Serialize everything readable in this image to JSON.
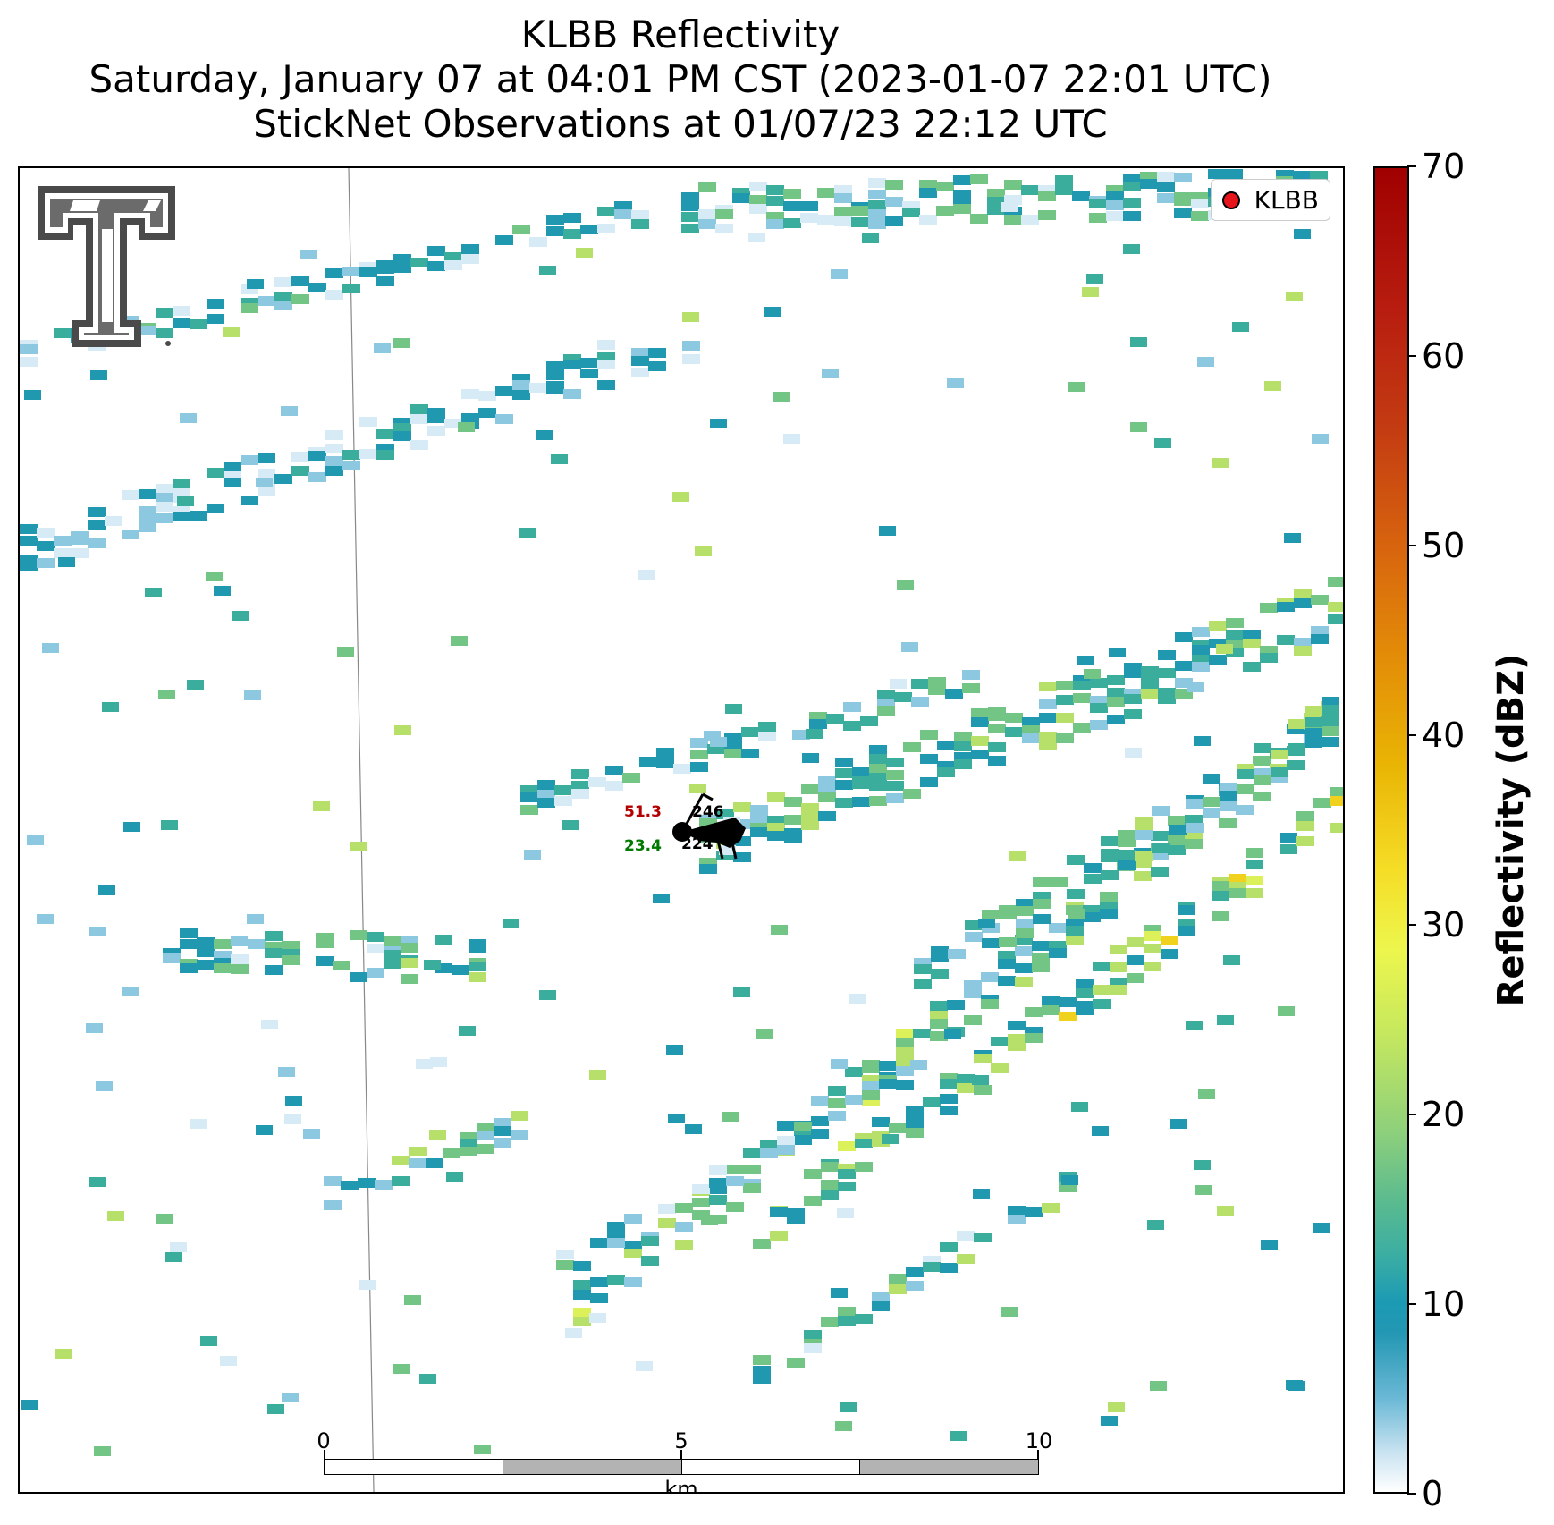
{
  "title": {
    "line1": "KLBB Reflectivity",
    "line2": "Saturday, January 07 at 04:01 PM CST (2023-01-07 22:01 UTC)",
    "line3": "StickNet Observations at 01/07/23 22:12 UTC"
  },
  "legend": {
    "label": "KLBB",
    "marker_color": "#e8141c"
  },
  "observation": {
    "temperature": "51.3",
    "dewpoint": "23.4",
    "upper_value": "246",
    "lower_value": "224"
  },
  "scalebar": {
    "ticks": [
      "0",
      "5",
      "10"
    ],
    "units": "km"
  },
  "colorbar": {
    "label": "Reflectivity (dBZ)",
    "ticks": [
      "0",
      "10",
      "20",
      "30",
      "40",
      "50",
      "60",
      "70"
    ],
    "min": 0,
    "max": 70
  },
  "colors": {
    "low": "#d6ebf5",
    "light_blue": "#8cc8e0",
    "teal": "#1f98b0",
    "green_teal": "#3aad9d",
    "green": "#72c585",
    "light_green": "#b7e06a",
    "yellow_green": "#dcf05a",
    "yellow": "#f0d21e"
  }
}
